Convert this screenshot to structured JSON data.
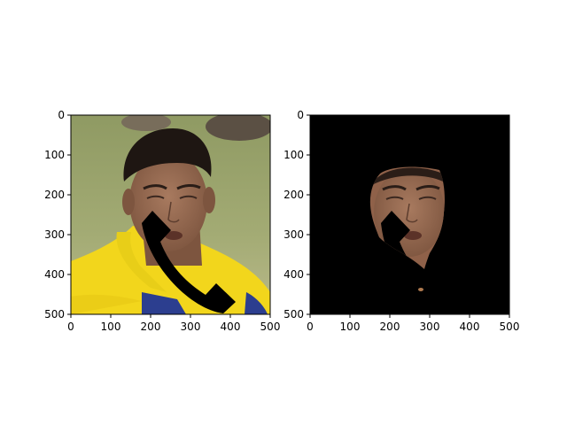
{
  "chart_data": [
    {
      "type": "image",
      "content": "photo",
      "xlim": [
        0,
        500
      ],
      "ylim": [
        500,
        0
      ],
      "x_ticks": [
        0,
        100,
        200,
        300,
        400,
        500
      ],
      "y_ticks": [
        0,
        100,
        200,
        300,
        400,
        500
      ]
    },
    {
      "type": "image",
      "content": "masked face",
      "xlim": [
        0,
        500
      ],
      "ylim": [
        500,
        0
      ],
      "x_ticks": [
        0,
        100,
        200,
        300,
        400,
        500
      ],
      "y_ticks": [
        0,
        100,
        200,
        300,
        400,
        500
      ]
    }
  ],
  "colors": {
    "background": "#ffffff",
    "grass": "#9aa36a",
    "skin": "#9c6e55",
    "hair": "#1e1612",
    "shirt": "#f2d61c",
    "shirt_blue": "#2c3e8f",
    "phone": "#000000",
    "mask": "#000000"
  },
  "icons": [
    "phone-handset-icon"
  ]
}
